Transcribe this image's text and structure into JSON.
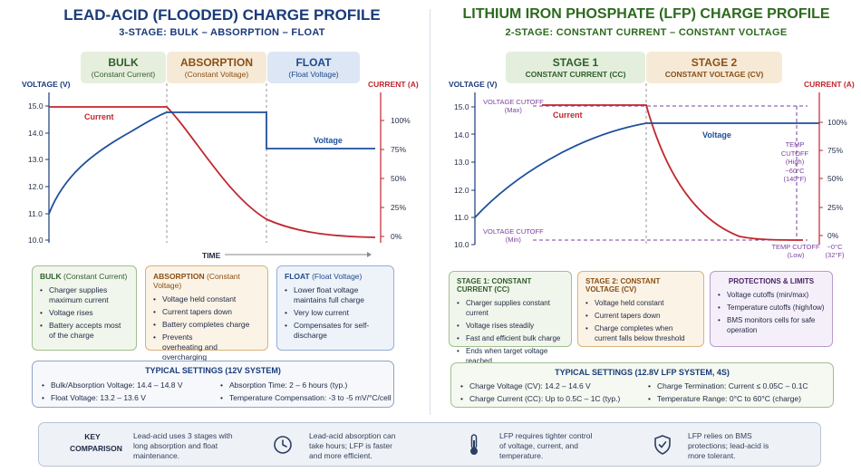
{
  "left": {
    "title": "LEAD-ACID (FLOODED) CHARGE PROFILE",
    "subtitle": "3-STAGE: BULK – ABSORPTION – FLOAT",
    "stages": [
      {
        "name": "BULK",
        "desc": "(Constant Current)",
        "color": "#e6efdd",
        "text": "#2f5e2a"
      },
      {
        "name": "ABSORPTION",
        "desc": "(Constant Voltage)",
        "color": "#f6ead7",
        "text": "#8a4f14"
      },
      {
        "name": "FLOAT",
        "desc": "(Float Voltage)",
        "color": "#dde6f4",
        "text": "#1d4a8c"
      }
    ],
    "voltage_axis_label": "VOLTAGE (V)",
    "current_axis_label": "CURRENT (A)",
    "voltage_ticks": [
      "15.0",
      "14.0",
      "13.0",
      "12.0",
      "11.0",
      "10.0"
    ],
    "current_ticks": [
      "100%",
      "75%",
      "50%",
      "25%",
      "0%"
    ],
    "current_label": "Current",
    "voltage_label": "Voltage",
    "time_label": "TIME",
    "cards": [
      {
        "title": "BULK",
        "title_sub": "(Constant Current)",
        "items": [
          "Charger supplies maximum current",
          "Voltage rises",
          "Battery accepts most of the charge"
        ]
      },
      {
        "title": "ABSORPTION",
        "title_sub": "(Constant Voltage)",
        "items": [
          "Voltage held constant",
          "Current tapers down",
          "Battery completes charge",
          "Prevents overheating and overcharging"
        ]
      },
      {
        "title": "FLOAT",
        "title_sub": "(Float Voltage)",
        "items": [
          "Lower float voltage maintains full charge",
          "Very low current",
          "Compensates for self-discharge"
        ]
      }
    ],
    "settings": {
      "title": "TYPICAL SETTINGS (12V SYSTEM)",
      "col1": [
        "Bulk/Absorption Voltage: 14.4 – 14.8 V",
        "Float Voltage: 13.2 – 13.6 V"
      ],
      "col2": [
        "Absorption Time: 2 – 6 hours (typ.)",
        "Temperature Compensation: -3 to -5 mV/°C/cell"
      ]
    }
  },
  "right": {
    "title": "LITHIUM IRON PHOSPHATE (LFP) CHARGE PROFILE",
    "subtitle": "2-STAGE: CONSTANT CURRENT – CONSTANT VOLTAGE",
    "stages": [
      {
        "name": "STAGE 1",
        "desc": "CONSTANT CURRENT (CC)",
        "color": "#e3efdc",
        "text": "#2f5e2a"
      },
      {
        "name": "STAGE 2",
        "desc": "CONSTANT VOLTAGE (CV)",
        "color": "#f6ead7",
        "text": "#8a4f14"
      }
    ],
    "voltage_axis_label": "VOLTAGE (V)",
    "current_axis_label": "CURRENT (A)",
    "voltage_ticks": [
      "15.0",
      "14.0",
      "13.0",
      "12.0",
      "11.0",
      "10.0"
    ],
    "current_ticks": [
      "100%",
      "75%",
      "50%",
      "25%",
      "0%"
    ],
    "current_label": "Current",
    "voltage_label": "Voltage",
    "cutoff_max": [
      "VOLTAGE CUTOFF",
      "(Max)"
    ],
    "cutoff_min": [
      "VOLTAGE CUTOFF",
      "(Min)"
    ],
    "temp_high": [
      "TEMP CUTOFF",
      "(High)",
      "~60°C",
      "(140°F)"
    ],
    "temp_low": [
      "TEMP CUTOFF",
      "(Low)",
      "~0°C",
      "(32°F)"
    ],
    "cards": [
      {
        "title": "STAGE 1: CONSTANT CURRENT (CC)",
        "items": [
          "Charger supplies constant current",
          "Voltage rises steadily",
          "Fast and efficient bulk charge",
          "Ends when target voltage reached"
        ]
      },
      {
        "title": "STAGE 2: CONSTANT VOLTAGE (CV)",
        "items": [
          "Voltage held constant",
          "Current tapers down",
          "Charge completes when current falls below threshold"
        ]
      },
      {
        "title": "PROTECTIONS & LIMITS",
        "items": [
          "Voltage cutoffs (min/max)",
          "Temperature cutoffs (high/low)",
          "BMS monitors cells for safe operation"
        ]
      }
    ],
    "settings": {
      "title": "TYPICAL SETTINGS (12.8V LFP SYSTEM, 4S)",
      "col1": [
        "Charge Voltage (CV): 14.2 – 14.6 V",
        "Charge Current (CC): Up to 0.5C – 1C (typ.)"
      ],
      "col2": [
        "Charge Termination: Current ≤ 0.05C – 0.1C",
        "Temperature Range: 0°C to 60°C (charge)"
      ]
    }
  },
  "comparison": {
    "key_label": "KEY COMPARISON",
    "cells": [
      "Lead-acid uses 3 stages with long absorption and float maintenance.",
      "Lead-acid absorption can take hours; LFP is faster and more efficient.",
      "LFP requires tighter control of voltage, current, and temperature.",
      "LFP relies on BMS protections; lead-acid is more tolerant."
    ],
    "icons": [
      "clock-icon",
      "thermometer-icon",
      "shield-check-icon"
    ]
  },
  "colors": {
    "navy": "#1a3a7a",
    "green_title": "#2c6a1e",
    "voltage_line": "#1d4f9c",
    "current_line": "#c0262d",
    "purple": "#7b3fa0"
  }
}
